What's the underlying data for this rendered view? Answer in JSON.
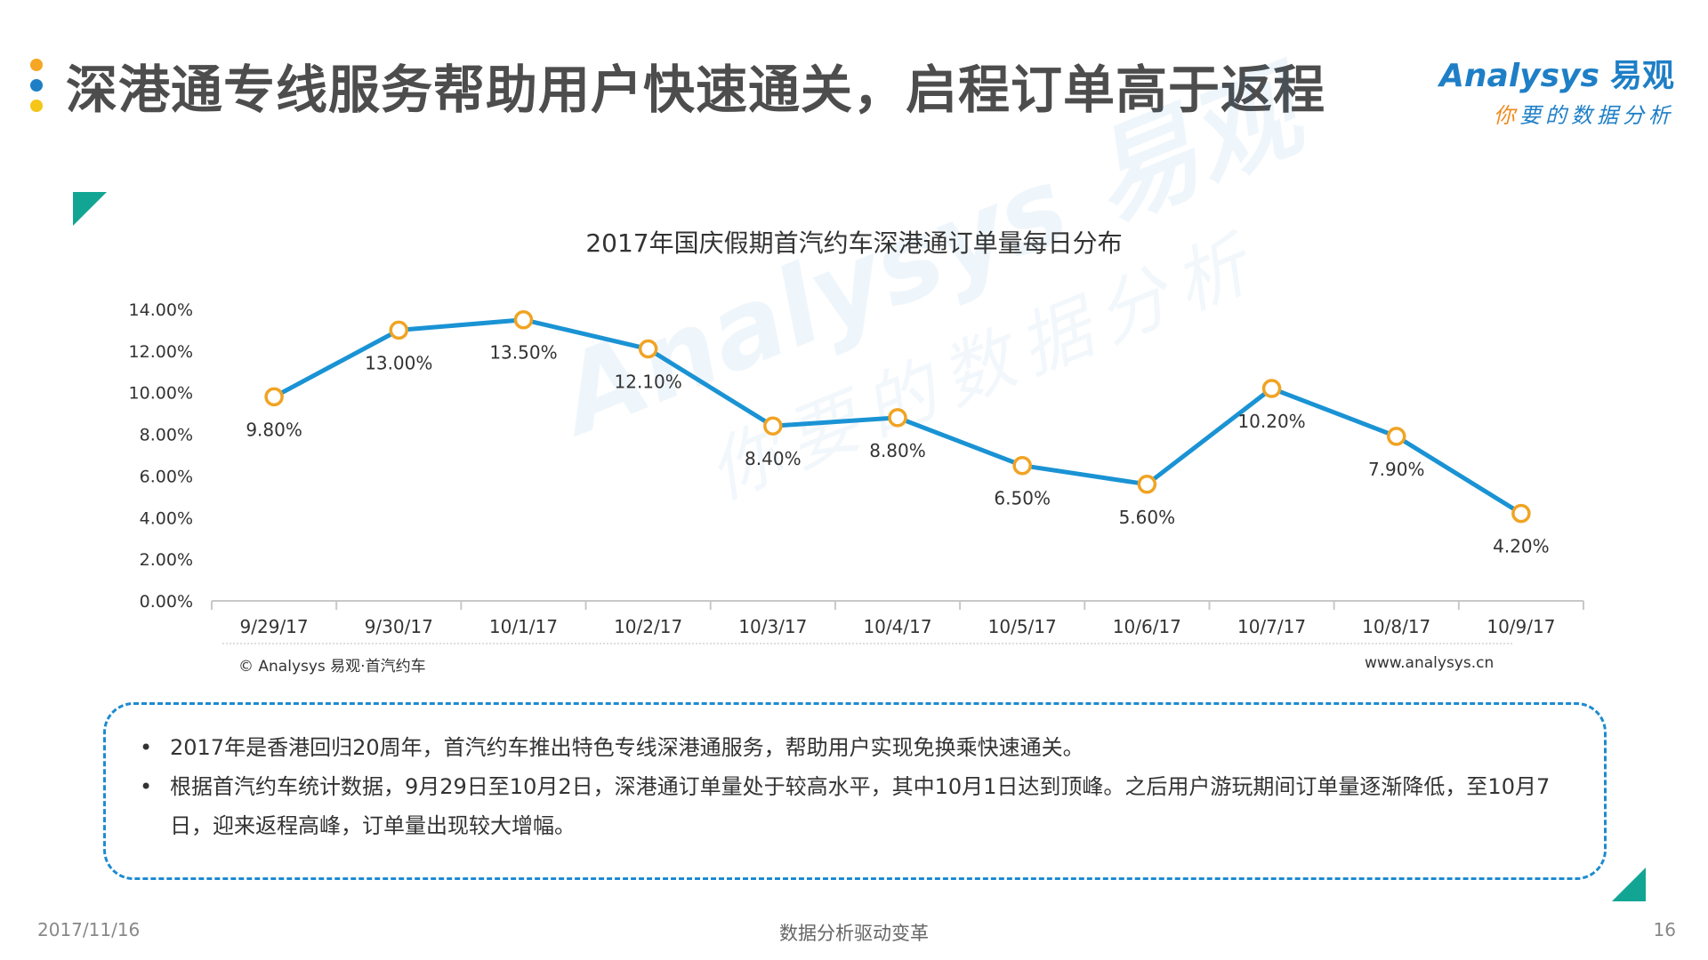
{
  "header": {
    "title": "深港通专线服务帮助用户快速通关，启程订单高于返程",
    "dot_colors": [
      "#f5a623",
      "#1e7fc6",
      "#f5c518"
    ]
  },
  "logo": {
    "brand_en": "Analysys",
    "brand_cn": "易观",
    "slogan_first": "你",
    "slogan_rest": "要的数据分析",
    "color": "#1e7fc6"
  },
  "chart_data": {
    "type": "line",
    "title": "2017年国庆假期首汽约车深港通订单量每日分布",
    "categories": [
      "9/29/17",
      "9/30/17",
      "10/1/17",
      "10/2/17",
      "10/3/17",
      "10/4/17",
      "10/5/17",
      "10/6/17",
      "10/7/17",
      "10/8/17",
      "10/9/17"
    ],
    "values": [
      9.8,
      13.0,
      13.5,
      12.1,
      8.4,
      8.8,
      6.5,
      5.6,
      10.2,
      7.9,
      4.2
    ],
    "value_labels": [
      "9.80%",
      "13.00%",
      "13.50%",
      "12.10%",
      "8.40%",
      "8.80%",
      "6.50%",
      "5.60%",
      "10.20%",
      "7.90%",
      "4.20%"
    ],
    "y_ticks": [
      "0.00%",
      "2.00%",
      "4.00%",
      "6.00%",
      "8.00%",
      "10.00%",
      "12.00%",
      "14.00%"
    ],
    "ylim": [
      0,
      14
    ],
    "grid": false,
    "legend": "none",
    "line_color": "#1a93d4",
    "marker_color": "#f0a323"
  },
  "source": {
    "left": "© Analysys 易观·首汽约车",
    "right": "www.analysys.cn"
  },
  "notes": [
    "2017年是香港回归20周年，首汽约车推出特色专线深港通服务，帮助用户实现免换乘快速通关。",
    "根据首汽约车统计数据，9月29日至10月2日，深港通订单量处于较高水平，其中10月1日达到顶峰。之后用户游玩期间订单量逐渐降低，至10月7日，迎来返程高峰，订单量出现较大增幅。"
  ],
  "footer": {
    "date": "2017/11/16",
    "center": "数据分析驱动变革",
    "page": "16"
  }
}
